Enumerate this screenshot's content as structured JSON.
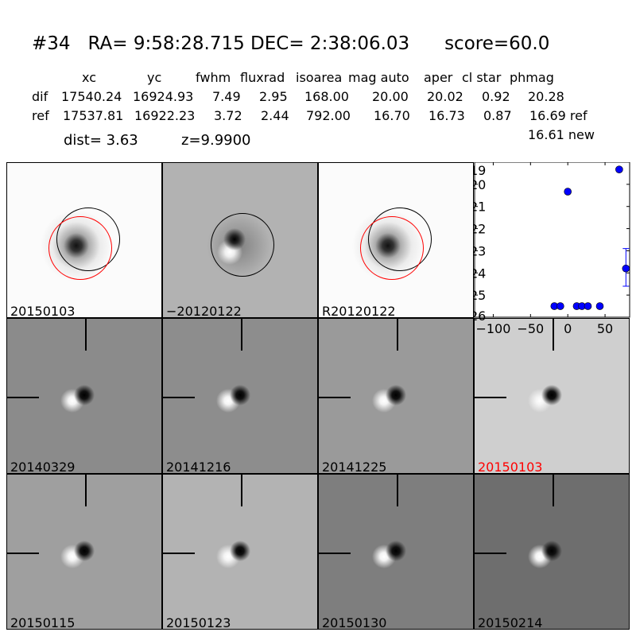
{
  "title": {
    "id": "#34",
    "ra": "RA= 9:58:28.715",
    "dec": "DEC= 2:38:06.03",
    "score": "score=60.0"
  },
  "table": {
    "headers": [
      "xc",
      "yc",
      "fwhm",
      "fluxrad",
      "isoarea",
      "mag auto",
      "aper",
      "cl star",
      "phmag"
    ],
    "rows": [
      {
        "label": "dif",
        "values": [
          "17540.24",
          "16924.93",
          "7.49",
          "2.95",
          "168.00",
          "20.00",
          "20.02",
          "0.92",
          "20.28"
        ]
      },
      {
        "label": "ref",
        "values": [
          "17537.81",
          "16922.23",
          "3.72",
          "2.44",
          "792.00",
          "16.70",
          "16.73",
          "0.87",
          "16.69 ref"
        ]
      }
    ],
    "extra": "16.61 new",
    "dist": "dist=  3.63",
    "z": "z=9.9900"
  },
  "stamps": [
    {
      "label": "20150103",
      "bg": "#fbfbfb",
      "kind": "new",
      "color": "#000000"
    },
    {
      "label": "-20120122",
      "bg": "#b2b2b2",
      "kind": "diff",
      "color": "#000000"
    },
    {
      "label": "R20120122",
      "bg": "#fbfbfb",
      "kind": "new",
      "color": "#000000"
    },
    {
      "label": "20140329",
      "bg": "#8b8b8b",
      "kind": "dipole",
      "color": "#000000"
    },
    {
      "label": "20141216",
      "bg": "#8d8d8d",
      "kind": "dipole",
      "color": "#000000"
    },
    {
      "label": "20141225",
      "bg": "#9a9a9a",
      "kind": "dipole",
      "color": "#000000"
    },
    {
      "label": "20150103",
      "bg": "#cfcfcf",
      "kind": "dipole",
      "color": "#ff0000"
    },
    {
      "label": "20150115",
      "bg": "#9f9f9f",
      "kind": "dipole",
      "color": "#000000"
    },
    {
      "label": "20150123",
      "bg": "#b3b3b3",
      "kind": "dipole",
      "color": "#000000"
    },
    {
      "label": "20150130",
      "bg": "#7e7e7e",
      "kind": "dipole",
      "color": "#000000"
    },
    {
      "label": "20150214",
      "bg": "#6e6e6e",
      "kind": "dipole",
      "color": "#000000"
    }
  ],
  "chart_data": {
    "type": "scatter",
    "xlim": [
      -125,
      83
    ],
    "ylim": [
      26,
      19
    ],
    "xticks": [
      -100,
      -50,
      0,
      50
    ],
    "yticks": [
      19,
      20,
      21,
      22,
      23,
      24,
      25,
      26
    ],
    "marker_color": "#0000ff",
    "points": [
      {
        "x": -18,
        "y": 25.5
      },
      {
        "x": -10,
        "y": 25.5
      },
      {
        "x": 0,
        "y": 20.33
      },
      {
        "x": 12,
        "y": 25.5
      },
      {
        "x": 19,
        "y": 25.5
      },
      {
        "x": 27,
        "y": 25.5
      },
      {
        "x": 43,
        "y": 25.5
      },
      {
        "x": 69,
        "y": 19.33
      },
      {
        "x": 78,
        "y": 23.8,
        "err": [
          22.9,
          24.6
        ]
      }
    ]
  }
}
